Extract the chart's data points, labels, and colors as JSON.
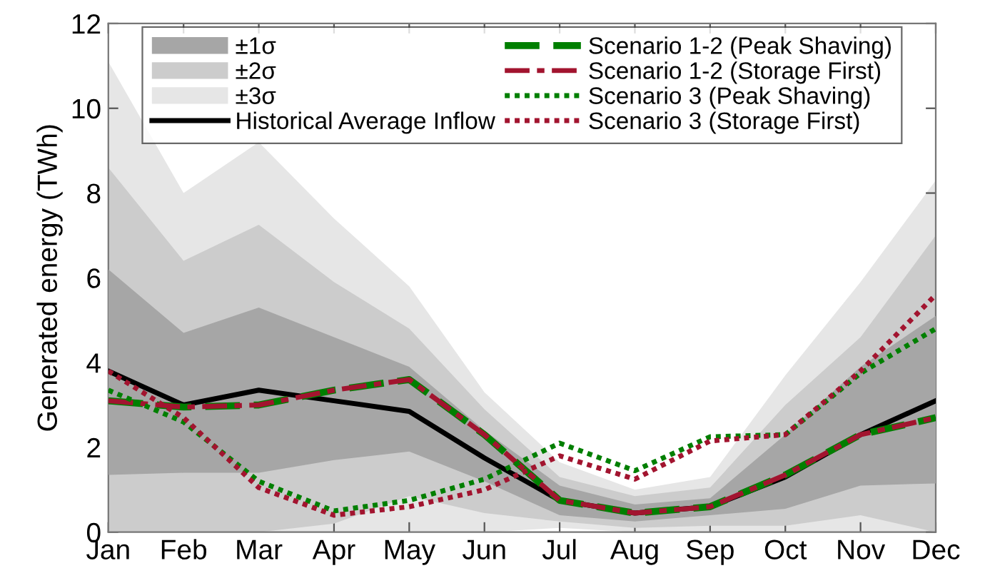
{
  "chart_data": {
    "type": "line",
    "ylabel": "Generated energy (TWh)",
    "categories": [
      "Jan",
      "Feb",
      "Mar",
      "Apr",
      "May",
      "Jun",
      "Jul",
      "Aug",
      "Sep",
      "Oct",
      "Nov",
      "Dec"
    ],
    "ylim": [
      0,
      12
    ],
    "yticks": [
      0,
      2,
      4,
      6,
      8,
      10,
      12
    ],
    "grid": false,
    "legend": "top",
    "line_style": "solid",
    "marker": "none",
    "series": [
      {
        "name": "±1σ",
        "type": "area",
        "color": "#a6a6a6",
        "values": [
          null,
          null,
          null,
          null,
          null,
          null,
          null,
          null,
          null,
          null,
          null,
          null
        ],
        "lower": [
          1.35,
          1.4,
          1.4,
          1.7,
          1.9,
          1.2,
          0.4,
          0.25,
          0.4,
          0.55,
          1.1,
          1.15
        ],
        "upper": [
          6.2,
          4.7,
          5.3,
          4.6,
          3.9,
          2.4,
          1.1,
          0.65,
          0.8,
          2.3,
          3.9,
          5.1
        ]
      },
      {
        "name": "±2σ",
        "type": "area",
        "color": "#cccccc",
        "values": [
          null,
          null,
          null,
          null,
          null,
          null,
          null,
          null,
          null,
          null,
          null,
          null
        ],
        "lower": [
          0,
          0,
          0,
          0.2,
          0.85,
          0.45,
          0.25,
          0.1,
          0.15,
          0.15,
          0.4,
          0
        ],
        "upper": [
          8.6,
          6.4,
          7.25,
          5.9,
          4.8,
          2.9,
          1.3,
          0.85,
          1.05,
          3.0,
          4.6,
          7.0
        ]
      },
      {
        "name": "±3σ",
        "type": "area",
        "color": "#e6e6e6",
        "values": [
          null,
          null,
          null,
          null,
          null,
          null,
          null,
          null,
          null,
          null,
          null,
          null
        ],
        "lower": [
          0,
          0,
          0,
          0,
          0,
          0,
          0.1,
          0,
          0,
          0,
          0,
          0
        ],
        "upper": [
          11.1,
          8.0,
          9.2,
          7.4,
          5.8,
          3.3,
          1.65,
          1.0,
          1.3,
          3.7,
          5.9,
          8.3
        ]
      },
      {
        "name": "Historical Average Inflow",
        "color": "#000000",
        "values": [
          3.8,
          3.0,
          3.35,
          3.1,
          2.85,
          1.75,
          0.75,
          0.45,
          0.6,
          1.3,
          2.3,
          3.1
        ]
      },
      {
        "name": "Scenario 1-2 (Peak Shaving)",
        "color": "#007f00",
        "line_style": "dashed",
        "values": [
          3.1,
          2.95,
          3.0,
          3.35,
          3.6,
          2.3,
          0.75,
          0.45,
          0.6,
          1.35,
          2.3,
          2.7
        ]
      },
      {
        "name": "Scenario 1-2 (Storage First)",
        "color": "#a2142f",
        "line_style": "dashdot",
        "values": [
          3.1,
          2.95,
          3.0,
          3.35,
          3.6,
          2.3,
          0.75,
          0.45,
          0.6,
          1.35,
          2.3,
          2.7
        ]
      },
      {
        "name": "Scenario 3 (Peak Shaving)",
        "color": "#007f00",
        "line_style": "dotted",
        "values": [
          3.35,
          2.6,
          1.2,
          0.5,
          0.75,
          1.25,
          2.1,
          1.45,
          2.25,
          2.3,
          3.75,
          4.8
        ]
      },
      {
        "name": "Scenario 3 (Storage First)",
        "color": "#a2142f",
        "line_style": "dotted",
        "values": [
          3.8,
          2.7,
          1.05,
          0.4,
          0.6,
          1.0,
          1.8,
          1.25,
          2.15,
          2.3,
          3.8,
          5.6
        ]
      }
    ]
  }
}
